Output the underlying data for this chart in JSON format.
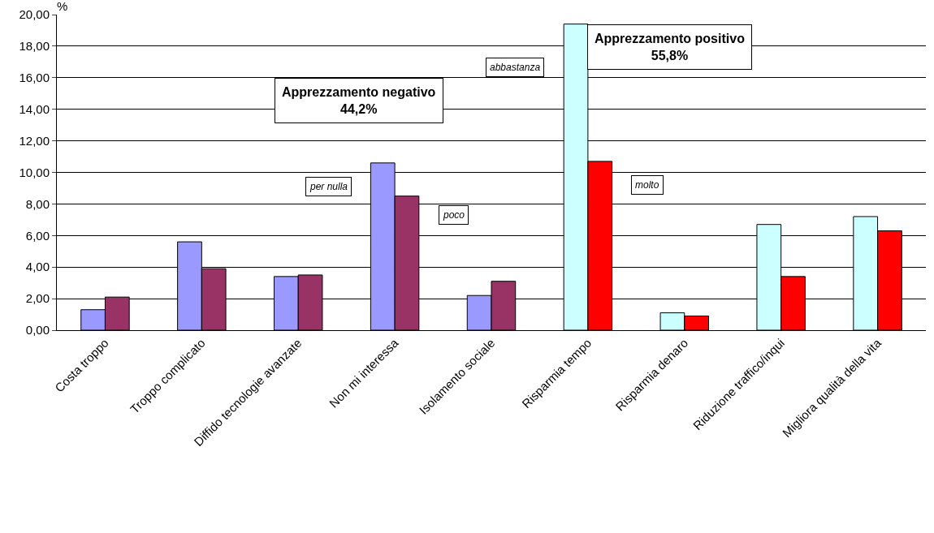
{
  "chart_data": {
    "type": "bar",
    "categories": [
      "Costa troppo",
      "Troppo complicato",
      "Diffido tecnologie avanzate",
      "Non mi interessa",
      "Isolamento sociale",
      "Risparmia tempo",
      "Risparmia denaro",
      "Riduzione traffico/inqui",
      "Migliora qualità della vita"
    ],
    "series": [
      {
        "name": "per nulla",
        "color": "#9999ff",
        "values": [
          1.3,
          5.6,
          3.4,
          10.6,
          2.2,
          null,
          null,
          null,
          null
        ]
      },
      {
        "name": "poco",
        "color": "#993366",
        "values": [
          2.1,
          3.9,
          3.5,
          8.5,
          3.1,
          null,
          null,
          null,
          null
        ]
      },
      {
        "name": "abbastanza",
        "color": "#ccffff",
        "values": [
          null,
          null,
          null,
          null,
          null,
          19.4,
          1.1,
          6.7,
          7.2
        ]
      },
      {
        "name": "molto",
        "color": "#ff0000",
        "values": [
          null,
          null,
          null,
          null,
          null,
          10.7,
          0.9,
          3.4,
          6.3
        ]
      }
    ],
    "ylabel": "%",
    "ylim": [
      0,
      20
    ],
    "yticks": [
      {
        "value": 0,
        "label": "0,00"
      },
      {
        "value": 2,
        "label": "2,00"
      },
      {
        "value": 4,
        "label": "4,00"
      },
      {
        "value": 6,
        "label": "6,00"
      },
      {
        "value": 8,
        "label": "8,00"
      },
      {
        "value": 10,
        "label": "10,00"
      },
      {
        "value": 12,
        "label": "12,00"
      },
      {
        "value": 14,
        "label": "14,00"
      },
      {
        "value": 16,
        "label": "16,00"
      },
      {
        "value": 18,
        "label": "18,00"
      },
      {
        "value": 20,
        "label": "20,00"
      }
    ],
    "annotations": [
      "Apprezzamento negativo\n44,2%",
      "Apprezzamento positivo\n55,8%"
    ],
    "grid": "y",
    "legend": false
  }
}
